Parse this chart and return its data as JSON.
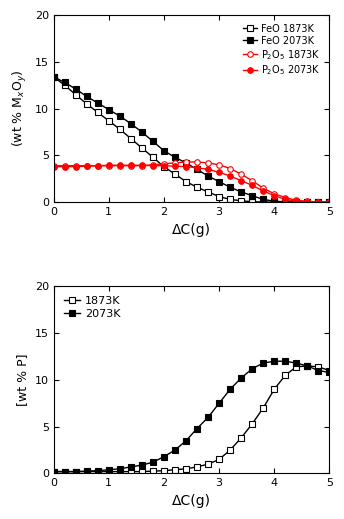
{
  "top": {
    "xlabel": "ΔC(g)",
    "ylabel": "(wt % M$_x$O$_y$)",
    "xlim": [
      0,
      5
    ],
    "ylim": [
      0,
      20
    ],
    "yticks": [
      0,
      5,
      10,
      15,
      20
    ],
    "xticks": [
      0,
      1,
      2,
      3,
      4,
      5
    ],
    "FeO_1873K_x": [
      0.0,
      0.2,
      0.4,
      0.6,
      0.8,
      1.0,
      1.2,
      1.4,
      1.6,
      1.8,
      2.0,
      2.2,
      2.4,
      2.6,
      2.8,
      3.0,
      3.2,
      3.4,
      3.6,
      3.8,
      4.0,
      4.2,
      4.4,
      4.6,
      4.8,
      5.0
    ],
    "FeO_1873K_y": [
      13.4,
      12.5,
      11.5,
      10.5,
      9.6,
      8.7,
      7.8,
      6.8,
      5.8,
      4.8,
      3.8,
      3.0,
      2.2,
      1.6,
      1.1,
      0.6,
      0.3,
      0.15,
      0.05,
      0.02,
      0.01,
      0.005,
      0.002,
      0.001,
      0.0,
      0.0
    ],
    "FeO_2073K_x": [
      0.0,
      0.2,
      0.4,
      0.6,
      0.8,
      1.0,
      1.2,
      1.4,
      1.6,
      1.8,
      2.0,
      2.2,
      2.4,
      2.6,
      2.8,
      3.0,
      3.2,
      3.4,
      3.6,
      3.8,
      4.0,
      4.2,
      4.4,
      4.6,
      4.8,
      5.0
    ],
    "FeO_2073K_y": [
      13.4,
      12.8,
      12.1,
      11.3,
      10.6,
      9.9,
      9.2,
      8.4,
      7.5,
      6.5,
      5.5,
      4.8,
      4.2,
      3.5,
      2.8,
      2.2,
      1.6,
      1.1,
      0.7,
      0.3,
      0.1,
      0.05,
      0.02,
      0.01,
      0.005,
      0.0
    ],
    "P2O5_1873K_x": [
      0.0,
      0.2,
      0.4,
      0.6,
      0.8,
      1.0,
      1.2,
      1.4,
      1.6,
      1.8,
      2.0,
      2.2,
      2.4,
      2.6,
      2.8,
      3.0,
      3.2,
      3.4,
      3.6,
      3.8,
      4.0,
      4.2,
      4.4,
      4.6,
      4.8,
      5.0
    ],
    "P2O5_1873K_y": [
      3.9,
      3.9,
      3.9,
      3.9,
      3.9,
      3.9,
      3.9,
      3.9,
      3.9,
      4.0,
      4.1,
      4.2,
      4.3,
      4.3,
      4.2,
      4.0,
      3.6,
      3.0,
      2.3,
      1.5,
      0.9,
      0.5,
      0.2,
      0.1,
      0.02,
      0.0
    ],
    "P2O5_2073K_x": [
      0.0,
      0.2,
      0.4,
      0.6,
      0.8,
      1.0,
      1.2,
      1.4,
      1.6,
      1.8,
      2.0,
      2.2,
      2.4,
      2.6,
      2.8,
      3.0,
      3.2,
      3.4,
      3.6,
      3.8,
      4.0,
      4.2,
      4.4,
      4.6,
      4.8,
      5.0
    ],
    "P2O5_2073K_y": [
      3.8,
      3.8,
      3.8,
      3.85,
      3.9,
      3.95,
      3.95,
      3.95,
      3.95,
      3.9,
      3.9,
      3.85,
      3.8,
      3.7,
      3.5,
      3.2,
      2.8,
      2.3,
      1.8,
      1.2,
      0.7,
      0.3,
      0.1,
      0.03,
      0.01,
      0.0
    ]
  },
  "bottom": {
    "xlabel": "ΔC(g)",
    "ylabel": "[wt % P]",
    "xlim": [
      0,
      5
    ],
    "ylim": [
      0,
      20
    ],
    "yticks": [
      0,
      5,
      10,
      15,
      20
    ],
    "xticks": [
      0,
      1,
      2,
      3,
      4,
      5
    ],
    "P_1873K_x": [
      0.0,
      0.2,
      0.4,
      0.6,
      0.8,
      1.0,
      1.2,
      1.4,
      1.6,
      1.8,
      2.0,
      2.2,
      2.4,
      2.6,
      2.8,
      3.0,
      3.2,
      3.4,
      3.6,
      3.8,
      4.0,
      4.2,
      4.4,
      4.6,
      4.8,
      5.0
    ],
    "P_1873K_y": [
      0.2,
      0.2,
      0.2,
      0.2,
      0.2,
      0.2,
      0.2,
      0.2,
      0.2,
      0.25,
      0.3,
      0.4,
      0.5,
      0.7,
      1.0,
      1.5,
      2.5,
      3.8,
      5.3,
      7.0,
      9.0,
      10.5,
      11.4,
      11.5,
      11.4,
      11.0
    ],
    "P_2073K_x": [
      0.0,
      0.2,
      0.4,
      0.6,
      0.8,
      1.0,
      1.2,
      1.4,
      1.6,
      1.8,
      2.0,
      2.2,
      2.4,
      2.6,
      2.8,
      3.0,
      3.2,
      3.4,
      3.6,
      3.8,
      4.0,
      4.2,
      4.4,
      4.6,
      4.8,
      5.0
    ],
    "P_2073K_y": [
      0.2,
      0.2,
      0.2,
      0.25,
      0.3,
      0.4,
      0.5,
      0.7,
      0.9,
      1.2,
      1.8,
      2.5,
      3.5,
      4.8,
      6.0,
      7.5,
      9.0,
      10.2,
      11.2,
      11.8,
      12.0,
      12.0,
      11.8,
      11.5,
      11.0,
      10.8
    ]
  }
}
